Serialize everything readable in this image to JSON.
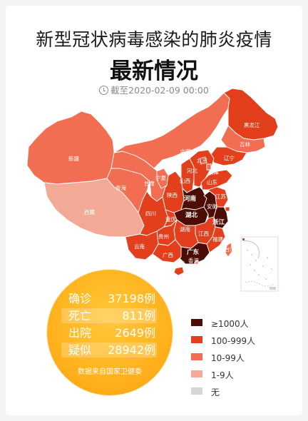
{
  "header": {
    "title": "新型冠状病毒感染的肺炎疫情",
    "subtitle": "最新情况",
    "date_text": "截至2020-02-09 00:00",
    "clock_icon": "clock-icon"
  },
  "stats": {
    "rows": [
      {
        "label": "确诊",
        "value": "37198例"
      },
      {
        "label": "死亡",
        "value": "811例"
      },
      {
        "label": "出院",
        "value": "2649例"
      },
      {
        "label": "疑似",
        "value": "28942例"
      }
    ],
    "source": "数据来自国家卫健委",
    "color": "#ffb21d"
  },
  "legend": [
    {
      "label": "≥1000人",
      "color": "#4d0d07"
    },
    {
      "label": "100-999人",
      "color": "#e43f1c"
    },
    {
      "label": "10-99人",
      "color": "#f26e52"
    },
    {
      "label": "1-9人",
      "color": "#f2aa97"
    },
    {
      "label": "无",
      "color": "#d6d6d6"
    }
  ],
  "map": {
    "provinces": [
      {
        "name": "新疆",
        "level": "10-99人"
      },
      {
        "name": "西藏",
        "level": "1-9人"
      },
      {
        "name": "青海",
        "level": "10-99人"
      },
      {
        "name": "甘肃",
        "level": "10-99人"
      },
      {
        "name": "内蒙古",
        "level": "10-99人"
      },
      {
        "name": "黑龙江",
        "level": "100-999人"
      },
      {
        "name": "吉林",
        "level": "10-99人"
      },
      {
        "name": "辽宁",
        "level": "100-999人"
      },
      {
        "name": "宁夏",
        "level": "10-99人"
      },
      {
        "name": "陕西",
        "level": "100-999人"
      },
      {
        "name": "山西",
        "level": "100-999人"
      },
      {
        "name": "河北",
        "level": "100-999人"
      },
      {
        "name": "北京",
        "level": "100-999人"
      },
      {
        "name": "天津",
        "level": "10-99人"
      },
      {
        "name": "山东",
        "level": "100-999人"
      },
      {
        "name": "河南",
        "level": "≥1000人"
      },
      {
        "name": "四川",
        "level": "100-999人"
      },
      {
        "name": "重庆",
        "level": "100-999人"
      },
      {
        "name": "湖北",
        "level": "≥1000人"
      },
      {
        "name": "安徽",
        "level": "≥1000人"
      },
      {
        "name": "江苏",
        "level": "100-999人"
      },
      {
        "name": "上海",
        "level": "100-999人"
      },
      {
        "name": "浙江",
        "level": "≥1000人"
      },
      {
        "name": "江西",
        "level": "100-999人"
      },
      {
        "name": "湖南",
        "level": "100-999人"
      },
      {
        "name": "贵州",
        "level": "100-999人"
      },
      {
        "name": "云南",
        "level": "100-999人"
      },
      {
        "name": "广西",
        "level": "100-999人"
      },
      {
        "name": "广东",
        "level": "≥1000人"
      },
      {
        "name": "福建",
        "level": "100-999人"
      },
      {
        "name": "台湾",
        "level": "10-99人"
      },
      {
        "name": "海南",
        "level": "100-999人"
      },
      {
        "name": "香港",
        "level": "10-99人"
      },
      {
        "name": "澳门",
        "level": "1-9人"
      }
    ],
    "labels": {
      "xinjiang": "新疆",
      "xizang": "西藏",
      "qinghai": "青海",
      "gansu": "甘肃",
      "neimenggu": "内蒙古",
      "heilongjiang": "黑龙江",
      "jilin": "吉林",
      "liaoning": "辽宁",
      "ningxia": "宁夏",
      "shaanxi": "陕西",
      "shanxi": "山西",
      "hebei": "河北",
      "beijing": "北京",
      "tianjin": "天津",
      "shandong": "山东",
      "henan": "河南",
      "sichuan": "四川",
      "chongqing": "重庆",
      "hubei": "湖北",
      "anhui": "安徽",
      "jiangsu": "江苏",
      "shanghai": "上海",
      "zhejiang": "浙江",
      "jiangxi": "江西",
      "hunan": "湖南",
      "guizhou": "贵州",
      "yunnan": "云南",
      "guangxi": "广西",
      "guangdong": "广东",
      "fujian": "福建",
      "taiwan": "台湾",
      "hainan": "海南",
      "hongkong": "香港"
    }
  }
}
